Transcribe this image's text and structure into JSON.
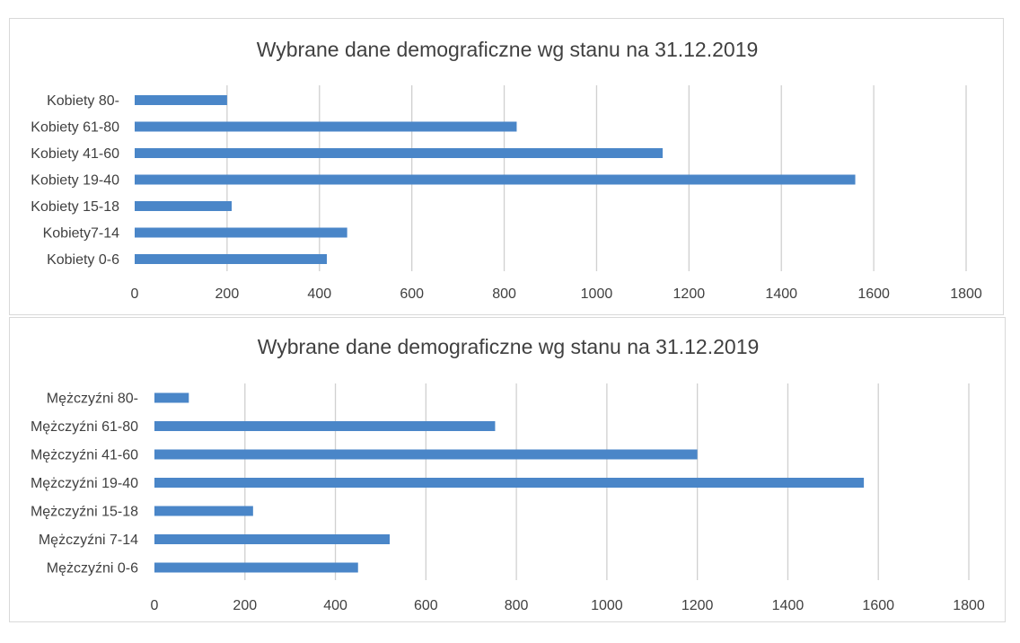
{
  "chart_data": [
    {
      "type": "bar",
      "orientation": "horizontal",
      "title": "Wybrane dane demograficzne wg stanu na 31.12.2019",
      "xlabel": "",
      "ylabel": "",
      "xlim": [
        0,
        1800
      ],
      "x_ticks": [
        "0",
        "200",
        "400",
        "600",
        "800",
        "1000",
        "1200",
        "1400",
        "1600",
        "1800"
      ],
      "grid": true,
      "legend": "none",
      "bar_color": "#4a86c8",
      "categories": [
        "Kobiety 80-",
        "Kobiety 61-80",
        "Kobiety 41-60",
        "Kobiety 19-40",
        "Kobiety 15-18",
        "Kobiety7-14",
        "Kobiety 0-6"
      ],
      "values": [
        200,
        827,
        1143,
        1560,
        210,
        460,
        416
      ]
    },
    {
      "type": "bar",
      "orientation": "horizontal",
      "title": "Wybrane dane demograficzne wg stanu na 31.12.2019",
      "xlabel": "",
      "ylabel": "",
      "xlim": [
        0,
        1800
      ],
      "x_ticks": [
        "0",
        "200",
        "400",
        "600",
        "800",
        "1000",
        "1200",
        "1400",
        "1600",
        "1800"
      ],
      "grid": true,
      "legend": "none",
      "bar_color": "#4a86c8",
      "categories": [
        "Mężczyźni 80-",
        "Mężczyźni 61-80",
        "Mężczyźni 41-60",
        "Mężczyźni 19-40",
        "Mężczyźni 15-18",
        "Mężczyźni 7-14",
        "Mężczyźni 0-6"
      ],
      "values": [
        76,
        753,
        1200,
        1568,
        218,
        520,
        450
      ]
    }
  ]
}
